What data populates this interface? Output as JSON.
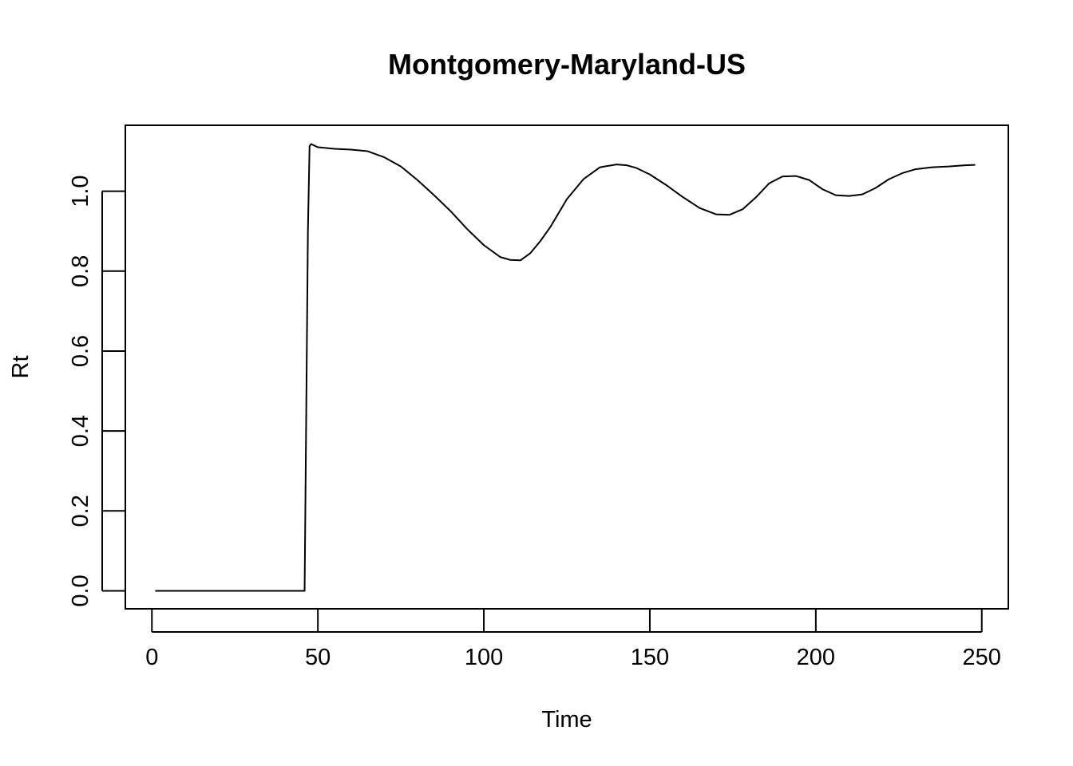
{
  "chart_data": {
    "type": "line",
    "title": "Montgomery-Maryland-US",
    "xlabel": "Time",
    "ylabel": "Rt",
    "xlim": [
      -8,
      258
    ],
    "ylim": [
      -0.045,
      1.165
    ],
    "x_ticks": [
      0,
      50,
      100,
      150,
      200,
      250
    ],
    "y_ticks": [
      0.0,
      0.2,
      0.4,
      0.6,
      0.8,
      1.0
    ],
    "x_tick_labels": [
      "0",
      "50",
      "100",
      "150",
      "200",
      "250"
    ],
    "y_tick_labels": [
      "0.0",
      "0.2",
      "0.4",
      "0.6",
      "0.8",
      "1.0"
    ],
    "grid": false,
    "line_color": "#000000",
    "series": [
      {
        "x": [
          1,
          10,
          20,
          30,
          40,
          46,
          46.5,
          47,
          47.5,
          48,
          50,
          55,
          60,
          65,
          70,
          75,
          80,
          85,
          90,
          95,
          100,
          105,
          108,
          111,
          114,
          117,
          120,
          125,
          130,
          135,
          140,
          143,
          146,
          150,
          155,
          160,
          165,
          170,
          174,
          178,
          182,
          186,
          190,
          194,
          198,
          202,
          206,
          210,
          214,
          218,
          222,
          226,
          230,
          235,
          240,
          245,
          248
        ],
        "y": [
          0.0,
          0.0,
          0.0,
          0.0,
          0.0,
          0.0,
          0.45,
          0.9,
          1.113,
          1.118,
          1.11,
          1.106,
          1.104,
          1.1,
          1.085,
          1.062,
          1.028,
          0.99,
          0.95,
          0.905,
          0.865,
          0.835,
          0.828,
          0.827,
          0.845,
          0.875,
          0.91,
          0.98,
          1.03,
          1.06,
          1.067,
          1.065,
          1.058,
          1.042,
          1.015,
          0.985,
          0.958,
          0.942,
          0.941,
          0.955,
          0.985,
          1.02,
          1.037,
          1.038,
          1.028,
          1.005,
          0.99,
          0.988,
          0.992,
          1.008,
          1.03,
          1.045,
          1.055,
          1.06,
          1.062,
          1.065,
          1.066
        ]
      }
    ]
  }
}
